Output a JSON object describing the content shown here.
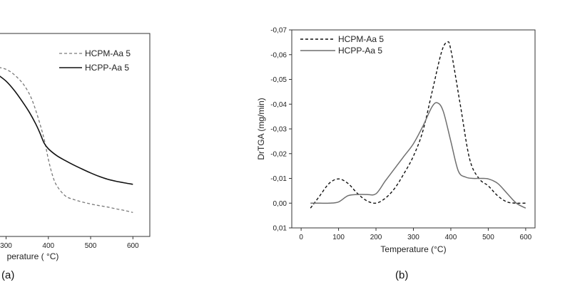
{
  "chart_data": [
    {
      "type": "line",
      "panel_label": "(a)",
      "xlabel": "Temperature ( °C)",
      "xlabel_visible": "perature ( °C)",
      "xlim": [
        100,
        640
      ],
      "ylim": [
        0,
        1
      ],
      "x_ticks": [
        300,
        400,
        500,
        600
      ],
      "legend_placement": "top-right",
      "grid": false,
      "series": [
        {
          "name": "HCPM-Aa 5",
          "style": "dashed",
          "color": "#7a7a7a",
          "x": [
            200,
            230,
            260,
            290,
            310,
            330,
            345,
            360,
            375,
            390,
            400,
            410,
            420,
            440,
            460,
            480,
            500,
            520,
            540,
            560,
            580,
            600
          ],
          "y": [
            0.843,
            0.84,
            0.837,
            0.83,
            0.812,
            0.776,
            0.738,
            0.68,
            0.59,
            0.48,
            0.38,
            0.3,
            0.25,
            0.2,
            0.182,
            0.17,
            0.16,
            0.152,
            0.145,
            0.136,
            0.128,
            0.118
          ]
        },
        {
          "name": "HCPP-Aa 5",
          "style": "solid",
          "color": "#111111",
          "x": [
            200,
            220,
            240,
            260,
            280,
            300,
            320,
            340,
            355,
            370,
            380,
            390,
            400,
            420,
            440,
            460,
            480,
            500,
            520,
            540,
            560,
            580,
            600
          ],
          "y": [
            0.852,
            0.849,
            0.84,
            0.822,
            0.797,
            0.765,
            0.718,
            0.66,
            0.612,
            0.555,
            0.51,
            0.46,
            0.432,
            0.398,
            0.374,
            0.352,
            0.332,
            0.313,
            0.296,
            0.282,
            0.272,
            0.264,
            0.257
          ]
        }
      ]
    },
    {
      "type": "line",
      "panel_label": "(b)",
      "xlabel": "Temperature (°C)",
      "ylabel": "DrTGA (mg/min)",
      "xlim": [
        -25,
        625
      ],
      "ylim": [
        0.01,
        -0.07
      ],
      "x_ticks": [
        0,
        100,
        200,
        300,
        400,
        500,
        600
      ],
      "y_ticks": [
        -0.07,
        -0.06,
        -0.05,
        -0.04,
        -0.03,
        -0.02,
        -0.01,
        0.0,
        0.01
      ],
      "y_tick_labels": [
        "-0,07",
        "-0,06",
        "-0,05",
        "-0,04",
        "-0,03",
        "-0,02",
        "-0,01",
        "0,00",
        "0,01"
      ],
      "legend_placement": "top-left",
      "grid": false,
      "series": [
        {
          "name": "HCPM-Aa 5",
          "style": "dashed",
          "color": "#111111",
          "x": [
            25,
            50,
            75,
            100,
            125,
            150,
            175,
            200,
            225,
            250,
            275,
            300,
            325,
            350,
            375,
            390,
            400,
            425,
            450,
            475,
            500,
            525,
            550,
            575,
            600
          ],
          "y": [
            0.002,
            -0.003,
            -0.008,
            -0.0098,
            -0.008,
            -0.004,
            -0.001,
            0.0,
            -0.002,
            -0.006,
            -0.012,
            -0.019,
            -0.029,
            -0.045,
            -0.061,
            -0.065,
            -0.062,
            -0.04,
            -0.018,
            -0.01,
            -0.007,
            -0.003,
            -0.0005,
            0.0,
            0.0
          ]
        },
        {
          "name": "HCPP-Aa 5",
          "style": "solid",
          "color": "#6f6f6f",
          "x": [
            25,
            50,
            75,
            100,
            125,
            150,
            175,
            200,
            225,
            250,
            275,
            300,
            325,
            350,
            365,
            380,
            400,
            420,
            440,
            460,
            480,
            500,
            525,
            550,
            575,
            600
          ],
          "y": [
            0.0,
            0.0,
            0.0,
            -0.0005,
            -0.003,
            -0.0035,
            -0.0035,
            -0.0038,
            -0.009,
            -0.014,
            -0.019,
            -0.024,
            -0.031,
            -0.039,
            -0.0405,
            -0.037,
            -0.025,
            -0.013,
            -0.0105,
            -0.01,
            -0.01,
            -0.0098,
            -0.008,
            -0.004,
            0.0,
            0.002
          ]
        }
      ]
    }
  ]
}
